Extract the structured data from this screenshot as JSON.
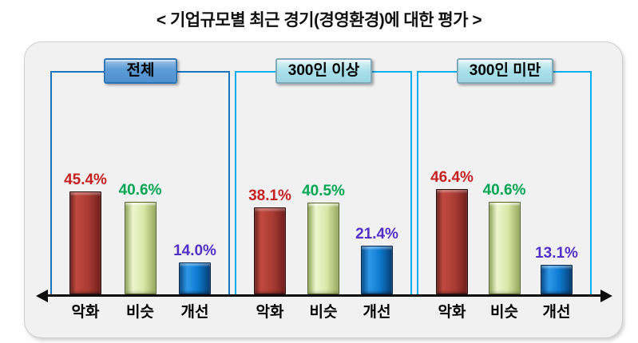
{
  "title": "< 기업규모별 최근 경기(경영환경)에 대한 평가 >",
  "colors": {
    "worse_bar": "#a83b33",
    "similar_bar": "#d9e8a8",
    "better_bar": "#0d79cf",
    "worse_label": "#c42222",
    "similar_label": "#00a651",
    "better_label": "#5230c8",
    "panel_total_border": "#1b75bc",
    "panel_other_border": "#00adee",
    "header_total_fill": "#5b9bd5",
    "header_other_fill": "#aadfe9",
    "axis": "#0d0d0d"
  },
  "chart_data": {
    "type": "bar",
    "title": "< 기업규모별 최근 경기(경영환경)에 대한 평가 >",
    "categories": [
      "악화",
      "비슷",
      "개선"
    ],
    "series": [
      {
        "name": "전체",
        "values": [
          45.4,
          40.6,
          14.0
        ]
      },
      {
        "name": "300인 이상",
        "values": [
          38.1,
          40.5,
          21.4
        ]
      },
      {
        "name": "300인 미만",
        "values": [
          46.4,
          40.6,
          13.1
        ]
      }
    ],
    "value_suffix": "%",
    "grid": false,
    "legend_position": "none",
    "ylim": [
      0,
      50
    ]
  },
  "panels": [
    {
      "header": "전체",
      "bars": [
        {
          "category": "악화",
          "value": 45.4,
          "label": "45.4%"
        },
        {
          "category": "비슷",
          "value": 40.6,
          "label": "40.6%"
        },
        {
          "category": "개선",
          "value": 14.0,
          "label": "14.0%"
        }
      ]
    },
    {
      "header": "300인 이상",
      "bars": [
        {
          "category": "악화",
          "value": 38.1,
          "label": "38.1%"
        },
        {
          "category": "비슷",
          "value": 40.5,
          "label": "40.5%"
        },
        {
          "category": "개선",
          "value": 21.4,
          "label": "21.4%"
        }
      ]
    },
    {
      "header": "300인 미만",
      "bars": [
        {
          "category": "악화",
          "value": 46.4,
          "label": "46.4%"
        },
        {
          "category": "비슷",
          "value": 40.6,
          "label": "40.6%"
        },
        {
          "category": "개선",
          "value": 13.1,
          "label": "13.1%"
        }
      ]
    }
  ]
}
